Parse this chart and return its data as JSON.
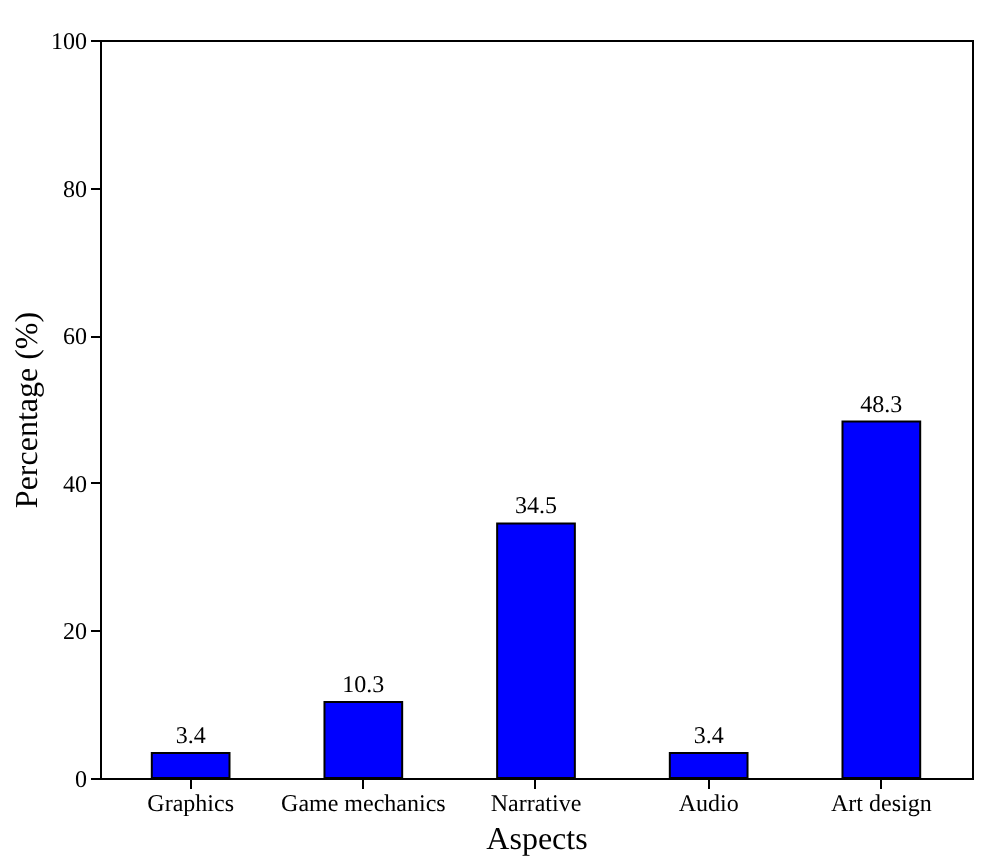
{
  "chart_data": {
    "type": "bar",
    "categories": [
      "Graphics",
      "Game mechanics",
      "Narrative",
      "Audio",
      "Art design"
    ],
    "values": [
      3.4,
      10.3,
      34.5,
      3.4,
      48.3
    ],
    "color": "#0000ff",
    "xlabel": "Aspects",
    "ylabel": "Percentage (%)",
    "ylim": [
      0,
      100
    ],
    "yticks": [
      0,
      20,
      40,
      60,
      80,
      100
    ],
    "data_labels": true,
    "grid": false
  }
}
